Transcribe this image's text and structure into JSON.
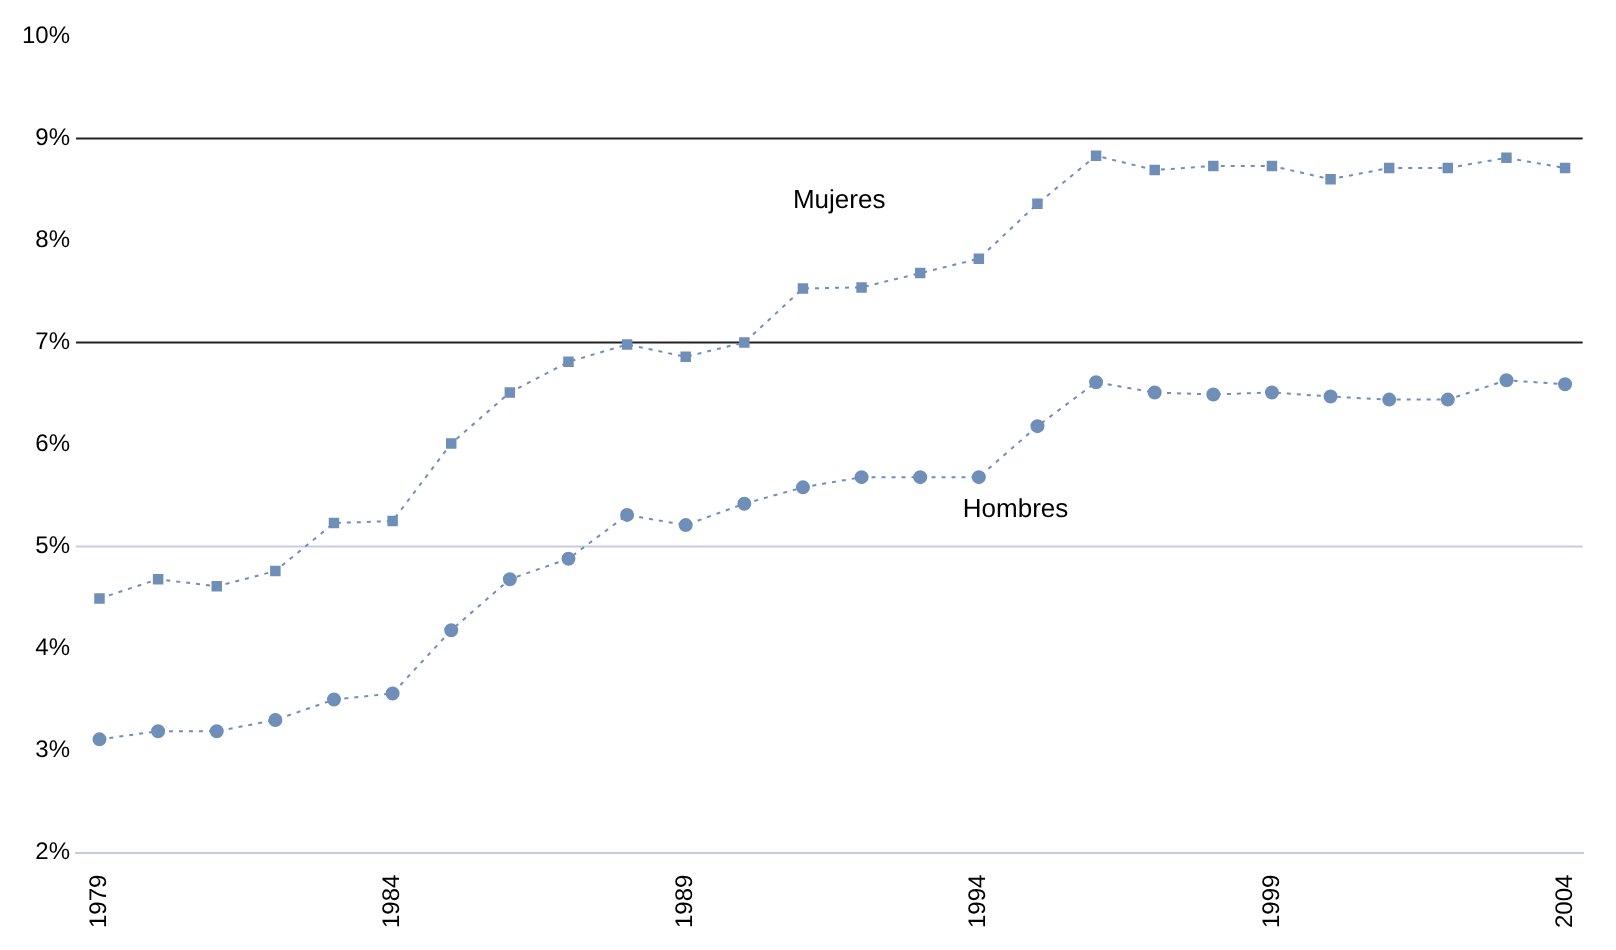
{
  "chart_data": {
    "type": "line",
    "x": [
      1979,
      1980,
      1981,
      1982,
      1983,
      1984,
      1985,
      1986,
      1987,
      1988,
      1989,
      1990,
      1991,
      1992,
      1993,
      1994,
      1995,
      1996,
      1997,
      1998,
      1999,
      2000,
      2001,
      2002,
      2003,
      2004
    ],
    "series": [
      {
        "name": "Mujeres",
        "color": "#6f8fb8",
        "marker": "square",
        "values": [
          4.49,
          4.68,
          4.61,
          4.76,
          5.23,
          5.25,
          6.01,
          6.51,
          6.81,
          6.98,
          6.86,
          7.0,
          7.53,
          7.54,
          7.68,
          7.82,
          8.36,
          8.83,
          8.69,
          8.73,
          8.73,
          8.6,
          8.71,
          8.71,
          8.81,
          8.71
        ]
      },
      {
        "name": "Hombres",
        "color": "#6f8fb8",
        "marker": "circle",
        "values": [
          3.11,
          3.19,
          3.19,
          3.3,
          3.5,
          3.56,
          4.18,
          4.68,
          4.88,
          5.31,
          5.21,
          5.42,
          5.58,
          5.68,
          5.68,
          5.68,
          6.18,
          6.61,
          6.51,
          6.49,
          6.51,
          6.47,
          6.44,
          6.44,
          6.63,
          6.59
        ]
      }
    ],
    "line_style": "dotted",
    "legend": false,
    "grid": false,
    "xlim": [
      1978.6,
      2004.3
    ],
    "xticks": [
      1979,
      1984,
      1989,
      1994,
      1999,
      2004
    ],
    "ylim": [
      2,
      10
    ],
    "yticks": [
      {
        "value": 2,
        "label": "2%"
      },
      {
        "value": 3,
        "label": "3%"
      },
      {
        "value": 4,
        "label": "4%"
      },
      {
        "value": 5,
        "label": "5%"
      },
      {
        "value": 6,
        "label": "6%"
      },
      {
        "value": 7,
        "label": "7%"
      },
      {
        "value": 8,
        "label": "8%"
      },
      {
        "value": 9,
        "label": "9%"
      },
      {
        "value": 10,
        "label": "10%"
      }
    ],
    "ref_lines": [
      {
        "axis": "y",
        "value": 9,
        "color": "#222222"
      },
      {
        "axis": "y",
        "value": 7,
        "color": "#222222"
      },
      {
        "axis": "y",
        "value": 5,
        "color": "#c8cbe0"
      }
    ]
  }
}
